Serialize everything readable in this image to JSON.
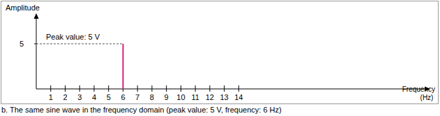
{
  "chart_data": {
    "type": "bar",
    "caption": "b. The same sine wave in the frequency domain (peak value: 5 V, frequency: 6 Hz)",
    "y_label": "Amplitude",
    "x_label": "Frequency (Hz)",
    "annotation": "Peak value: 5 V",
    "x": [
      6
    ],
    "values": [
      5
    ],
    "color": "#d4237f",
    "xlim": [
      0,
      27
    ],
    "xticks": [
      1,
      2,
      3,
      4,
      5,
      6,
      7,
      8,
      9,
      10,
      11,
      12,
      13,
      14
    ],
    "ylim": [
      0,
      8
    ],
    "yticks": [
      5
    ],
    "grid": false
  }
}
